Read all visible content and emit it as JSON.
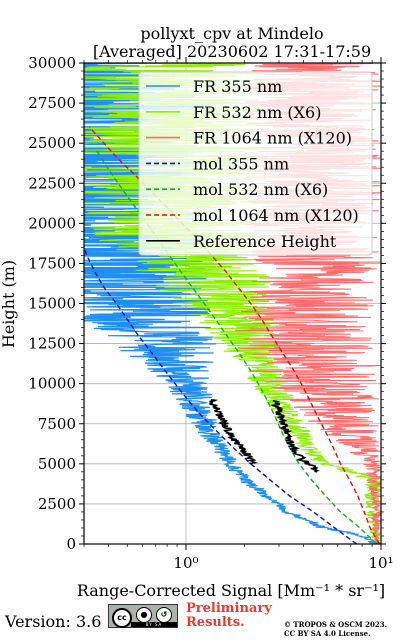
{
  "chart_data": {
    "type": "line",
    "title_line1": "pollyxt_cpv at Mindelo",
    "title_line2": "[Averaged] 20230602 17:31-17:59",
    "xlabel": "Range-Corrected Signal [Mm⁻¹ * sr⁻¹]",
    "ylabel": "Height (m)",
    "xscale": "log",
    "xlim": [
      0.3,
      10
    ],
    "ylim": [
      0,
      30000
    ],
    "xtick_labels": [
      "10⁰",
      "10¹"
    ],
    "xtick_values": [
      1,
      10
    ],
    "ytick_values": [
      0,
      2500,
      5000,
      7500,
      10000,
      12500,
      15000,
      17500,
      20000,
      22500,
      25000,
      27500,
      30000
    ],
    "ytick_labels": [
      "0",
      "2500",
      "5000",
      "7500",
      "10000",
      "12500",
      "15000",
      "17500",
      "20000",
      "22500",
      "25000",
      "27500",
      "30000"
    ],
    "grid": true,
    "legend_position": "upper-right",
    "series": [
      {
        "name": "FR 355 nm",
        "color": "#1f8ff0",
        "style": "solid",
        "heights": [
          0,
          500,
          1000,
          2000,
          3000,
          4000,
          5000,
          6000,
          7000,
          8000,
          9000,
          10000,
          11000,
          12000,
          13000,
          14000,
          15000,
          16000,
          17000,
          18000,
          20000,
          22000,
          25000,
          28000,
          30000
        ],
        "values": [
          9.5,
          8.0,
          5.0,
          3.3,
          2.6,
          2.0,
          1.7,
          1.5,
          1.3,
          1.2,
          1.1,
          1.0,
          0.9,
          0.82,
          0.72,
          0.62,
          0.55,
          0.48,
          0.42,
          0.38,
          0.33,
          0.32,
          0.32,
          0.32,
          0.32
        ],
        "spread": [
          0.02,
          0.02,
          0.03,
          0.03,
          0.03,
          0.04,
          0.04,
          0.05,
          0.06,
          0.08,
          0.1,
          0.12,
          0.18,
          0.25,
          0.3,
          0.35,
          0.4,
          0.45,
          0.55,
          0.6,
          0.6,
          0.6,
          0.6,
          0.6,
          0.6
        ]
      },
      {
        "name": "FR 532 nm (X6)",
        "color": "#8cf000",
        "style": "solid",
        "heights": [
          0,
          1000,
          2000,
          3000,
          4000,
          5000,
          6000,
          7000,
          8000,
          9000,
          10000,
          11000,
          12000,
          13000,
          14000,
          15000,
          16000,
          17000,
          18000,
          19000,
          20000,
          21000,
          22000,
          23000,
          24000,
          25000,
          26000,
          27000,
          28000,
          29000,
          30000
        ],
        "values": [
          9.5,
          9.2,
          9.0,
          9.0,
          9.3,
          5.0,
          4.2,
          3.8,
          3.3,
          3.0,
          2.7,
          2.5,
          2.2,
          2.0,
          1.8,
          1.6,
          1.4,
          1.25,
          1.1,
          0.95,
          0.85,
          0.8,
          0.8,
          0.8,
          0.8,
          0.8,
          0.8,
          0.8,
          0.8,
          0.8,
          0.8
        ],
        "spread": [
          0.02,
          0.03,
          0.03,
          0.04,
          0.05,
          0.05,
          0.05,
          0.06,
          0.07,
          0.08,
          0.1,
          0.12,
          0.15,
          0.18,
          0.2,
          0.25,
          0.3,
          0.35,
          0.4,
          0.45,
          0.5,
          0.55,
          0.55,
          0.55,
          0.55,
          0.55,
          0.55,
          0.55,
          0.55,
          0.55,
          0.55
        ]
      },
      {
        "name": "FR 1064 nm (X120)",
        "color": "#ff6b6b",
        "style": "solid",
        "heights": [
          0,
          1000,
          2000,
          3000,
          4000,
          5000,
          6000,
          7000,
          8000,
          9000,
          10000,
          11000,
          12000,
          13000,
          14000,
          15000,
          16000,
          17000,
          18000,
          19000,
          20000,
          21000,
          22000,
          23000,
          24000,
          25000,
          26000,
          27000,
          28000,
          29000,
          30000
        ],
        "values": [
          9.5,
          9.5,
          9.5,
          9.4,
          9.2,
          9.0,
          8.0,
          7.0,
          6.0,
          5.5,
          5.0,
          4.5,
          4.2,
          4.0,
          4.0,
          4.2,
          4.5,
          4.5,
          4.5,
          4.5,
          4.5,
          4.5,
          4.5,
          4.5,
          4.5,
          4.5,
          4.5,
          4.5,
          4.5,
          4.5,
          4.5
        ],
        "spread": [
          0.02,
          0.02,
          0.03,
          0.03,
          0.04,
          0.05,
          0.1,
          0.15,
          0.2,
          0.25,
          0.3,
          0.35,
          0.35,
          0.35,
          0.35,
          0.35,
          0.35,
          0.35,
          0.35,
          0.35,
          0.35,
          0.35,
          0.35,
          0.35,
          0.35,
          0.35,
          0.35,
          0.35,
          0.35,
          0.35,
          0.35
        ]
      },
      {
        "name": "mol 355 nm",
        "color": "#1010d0",
        "style": "dashed",
        "heights": [
          0,
          1000,
          2000,
          3000,
          4000,
          5000,
          6000,
          7000,
          8000,
          9000,
          10000,
          11000,
          12000,
          13000,
          14000,
          15000,
          16000,
          17000,
          18000,
          18500
        ],
        "values": [
          7.5,
          5.8,
          4.5,
          3.4,
          2.7,
          2.15,
          1.75,
          1.45,
          1.2,
          1.02,
          0.88,
          0.76,
          0.66,
          0.57,
          0.5,
          0.44,
          0.38,
          0.34,
          0.31,
          0.3
        ]
      },
      {
        "name": "mol 532 nm (X6)",
        "color": "#10b010",
        "style": "dashed",
        "heights": [
          0,
          1000,
          2000,
          3000,
          4000,
          5000,
          6000,
          7000,
          8000,
          9000,
          10000,
          11000,
          12000,
          13000,
          14000,
          15000,
          16000,
          17000,
          18000,
          19000,
          20000,
          21000,
          22000,
          23000,
          24000,
          24500
        ],
        "values": [
          9.5,
          7.8,
          6.2,
          5.2,
          4.4,
          3.8,
          3.4,
          3.1,
          2.85,
          2.6,
          2.35,
          2.1,
          1.85,
          1.62,
          1.42,
          1.24,
          1.08,
          0.94,
          0.82,
          0.72,
          0.63,
          0.55,
          0.48,
          0.42,
          0.37,
          0.35
        ]
      },
      {
        "name": "mol 1064 nm (X120)",
        "color": "#e01010",
        "style": "dashed",
        "heights": [
          0,
          1000,
          2000,
          3000,
          4000,
          5000,
          6000,
          7000,
          8000,
          9000,
          10000,
          11000,
          12000,
          13000,
          14000,
          15000,
          16000,
          17000,
          18000,
          19000,
          20000,
          21000,
          22000,
          23000,
          24000,
          25000,
          26000
        ],
        "values": [
          9.8,
          8.8,
          8.2,
          7.6,
          6.9,
          6.2,
          5.7,
          5.2,
          4.7,
          4.3,
          3.9,
          3.5,
          3.1,
          2.75,
          2.45,
          2.15,
          1.85,
          1.6,
          1.35,
          1.15,
          0.95,
          0.8,
          0.66,
          0.55,
          0.45,
          0.38,
          0.32
        ]
      },
      {
        "name": "Reference Height",
        "color": "#000000",
        "style": "solid",
        "segments": [
          {
            "heights": [
              4500,
              5200,
              5800,
              6500,
              7200,
              7800,
              8400,
              9000
            ],
            "values": [
              4.8,
              4.0,
              3.6,
              3.4,
              3.2,
              3.05,
              3.0,
              2.8
            ]
          },
          {
            "heights": [
              5000,
              5600,
              6200,
              6800,
              7400,
              8000,
              8600,
              9000
            ],
            "values": [
              2.2,
              2.05,
              1.85,
              1.7,
              1.6,
              1.5,
              1.4,
              1.35
            ]
          }
        ]
      }
    ]
  },
  "footer": {
    "version": "Version: 3.6",
    "cc_text": "cc",
    "by_text": "BY",
    "sa_text": "SA",
    "preliminary_line1": "Preliminary",
    "preliminary_line2": "Results.",
    "copyright_line1": "© TROPOS & OSCM 2023.",
    "copyright_line2": "CC BY SA 4.0 License."
  }
}
